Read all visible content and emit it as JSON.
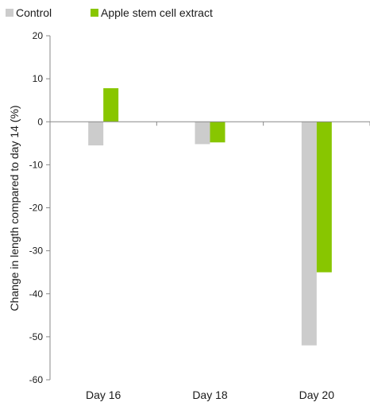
{
  "chart_data": {
    "type": "bar",
    "title": "",
    "xlabel": "",
    "ylabel": "Change in length compared to day 14 (%)",
    "categories": [
      "Day 16",
      "Day 18",
      "Day 20"
    ],
    "series": [
      {
        "name": "Control",
        "color": "#cccccc",
        "values": [
          -5.5,
          -5.2,
          -52
        ]
      },
      {
        "name": "Apple stem cell extract",
        "color": "#88c600",
        "values": [
          7.8,
          -4.8,
          -35
        ]
      }
    ],
    "ylim": [
      -60,
      20
    ],
    "yticks": [
      20,
      10,
      0,
      -10,
      -20,
      -30,
      -40,
      -50,
      -60
    ],
    "ytick_labels": [
      "20",
      "10",
      "0",
      "-10",
      "-20",
      "-30",
      "-40",
      "-50",
      "-60"
    ],
    "grid": false,
    "legend": "top-left",
    "axis_color": "#888888"
  }
}
